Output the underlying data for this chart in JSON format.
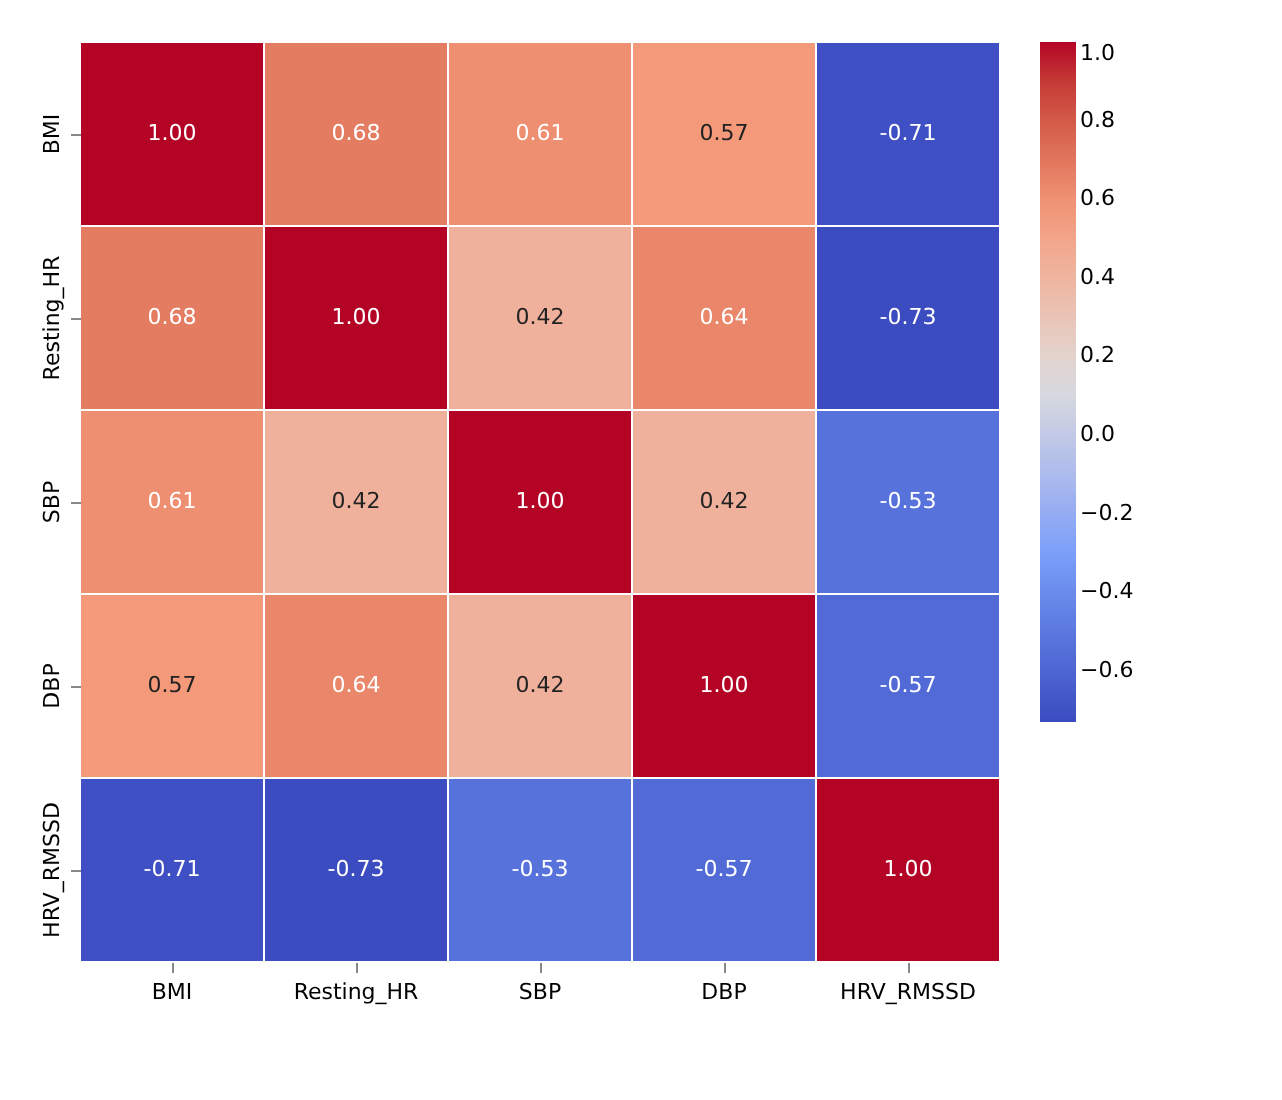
{
  "chart_data": {
    "type": "heatmap",
    "categories": [
      "BMI",
      "Resting_HR",
      "SBP",
      "DBP",
      "HRV_RMSSD"
    ],
    "y_categories": [
      "BMI",
      "Resting_HR",
      "SBP",
      "DBP",
      "HRV_RMSSD"
    ],
    "cells": [
      [
        1.0,
        0.68,
        0.61,
        0.57,
        -0.71
      ],
      [
        0.68,
        1.0,
        0.42,
        0.64,
        -0.73
      ],
      [
        0.61,
        0.42,
        1.0,
        0.42,
        -0.53
      ],
      [
        0.57,
        0.64,
        0.42,
        1.0,
        -0.57
      ],
      [
        -0.71,
        -0.73,
        -0.53,
        -0.57,
        1.0
      ]
    ],
    "cell_labels": [
      [
        "1.00",
        "0.68",
        "0.61",
        "0.57",
        "-0.71"
      ],
      [
        "0.68",
        "1.00",
        "0.42",
        "0.64",
        "-0.73"
      ],
      [
        "0.61",
        "0.42",
        "1.00",
        "0.42",
        "-0.53"
      ],
      [
        "0.57",
        "0.64",
        "0.42",
        "1.00",
        "-0.57"
      ],
      [
        "-0.71",
        "-0.73",
        "-0.53",
        "-0.57",
        "1.00"
      ]
    ],
    "clim": [
      -0.73,
      1.0
    ],
    "cticks": [
      {
        "value": -0.6,
        "label": "−0.6"
      },
      {
        "value": -0.4,
        "label": "−0.4"
      },
      {
        "value": -0.2,
        "label": "−0.2"
      },
      {
        "value": 0.0,
        "label": "0.0"
      },
      {
        "value": 0.2,
        "label": "0.2"
      },
      {
        "value": 0.4,
        "label": "0.4"
      },
      {
        "value": 0.6,
        "label": "0.6"
      },
      {
        "value": 0.8,
        "label": "0.8"
      },
      {
        "value": 1.0,
        "label": "1.0"
      }
    ]
  }
}
